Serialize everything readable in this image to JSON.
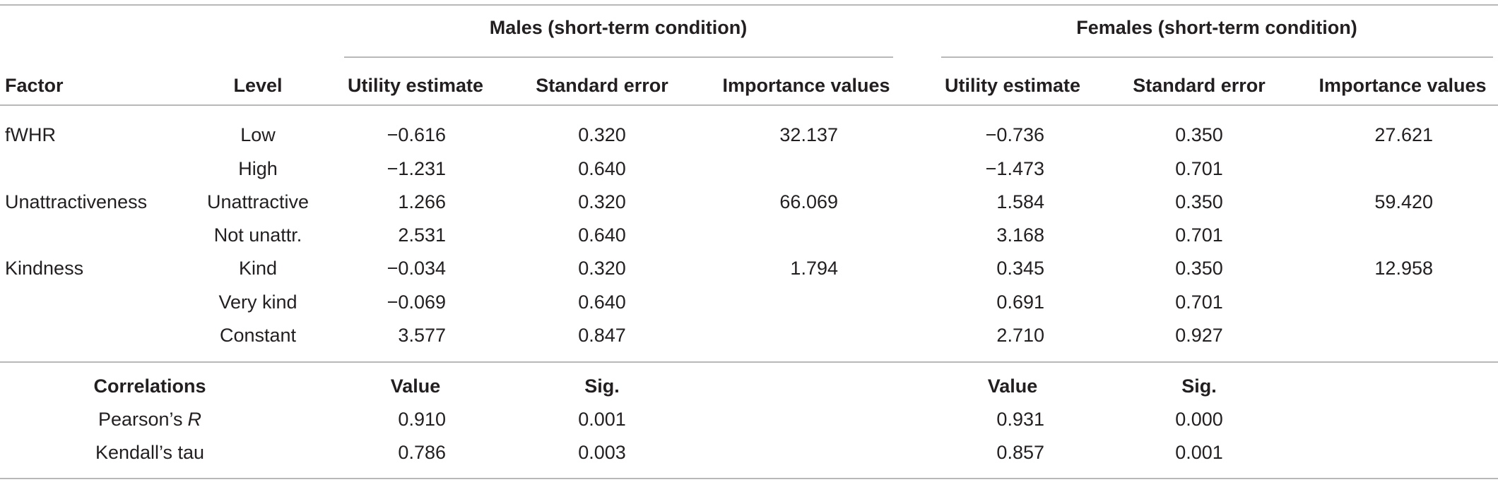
{
  "table": {
    "groups": [
      "Males (short-term condition)",
      "Females (short-term condition)"
    ],
    "columns": [
      "Factor",
      "Level",
      "Utility estimate",
      "Standard error",
      "Importance values",
      "Utility estimate",
      "Standard error",
      "Importance values"
    ],
    "rows": [
      [
        "fWHR",
        "Low",
        "−0.616",
        "0.320",
        "32.137",
        "−0.736",
        "0.350",
        "27.621"
      ],
      [
        null,
        "High",
        "−1.231",
        "0.640",
        null,
        "−1.473",
        "0.701",
        null
      ],
      [
        "Unattractiveness",
        "Unattractive",
        "1.266",
        "0.320",
        "66.069",
        "1.584",
        "0.350",
        "59.420"
      ],
      [
        null,
        "Not unattr.",
        "2.531",
        "0.640",
        null,
        "3.168",
        "0.701",
        null
      ],
      [
        "Kindness",
        "Kind",
        "−0.034",
        "0.320",
        "1.794",
        "0.345",
        "0.350",
        "12.958"
      ],
      [
        null,
        "Very kind",
        "−0.069",
        "0.640",
        null,
        "0.691",
        "0.701",
        null
      ],
      [
        null,
        "Constant",
        "3.577",
        "0.847",
        null,
        "2.710",
        "0.927",
        null
      ]
    ],
    "correlations": {
      "header": [
        "Correlations",
        "Value",
        "Sig.",
        "Value",
        "Sig."
      ],
      "rows": [
        {
          "label": "Pearson’s",
          "symbol": "R",
          "values": [
            "0.910",
            "0.001",
            "0.931",
            "0.000"
          ]
        },
        {
          "label": "Kendall’s tau",
          "values": [
            "0.786",
            "0.003",
            "0.857",
            "0.001"
          ]
        }
      ]
    }
  }
}
